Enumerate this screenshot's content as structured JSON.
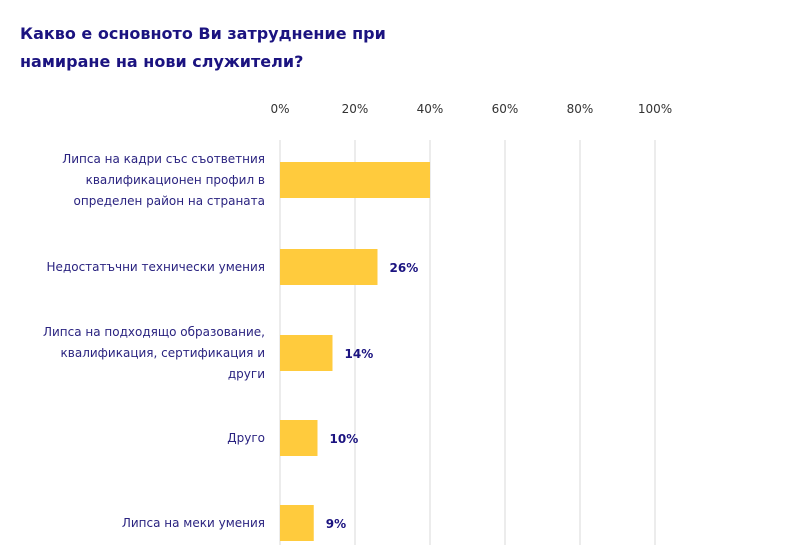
{
  "chart_data": {
    "type": "bar",
    "orientation": "horizontal",
    "title": "Какво е основното Ви затруднение при намиране на нови служители?",
    "categories": [
      [
        "Липса на кадри със съответния",
        "квалификационен профил в",
        "определен район на страната"
      ],
      [
        "Недостатъчни технически умения"
      ],
      [
        "Липса на подходящо образование,",
        "квалификация, сертификация и",
        "други"
      ],
      [
        "Друго"
      ],
      [
        "Липса на меки умения"
      ]
    ],
    "values": [
      40,
      26,
      14,
      10,
      9
    ],
    "data_labels": [
      "",
      "26%",
      "14%",
      "10%",
      "9%"
    ],
    "xlim": [
      0,
      100
    ],
    "ticks": [
      "0%",
      "20%",
      "40%",
      "60%",
      "80%",
      "100%"
    ],
    "grid": true,
    "colors": {
      "bar": "#FFCB3D",
      "title": "#1B1380",
      "grid": "#E6E6E6"
    }
  }
}
